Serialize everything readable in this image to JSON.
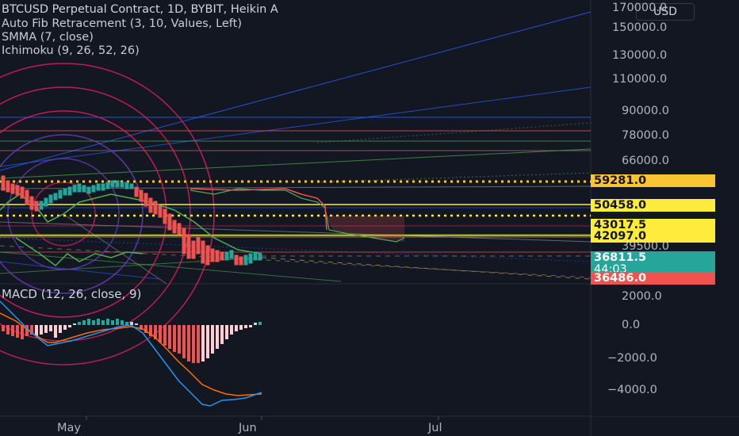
{
  "header": {
    "title": "BTCUSD Perpetual Contract, 1D, BYBIT, Heikin A",
    "indicators": [
      "Auto Fib Retracement (3, 10, Values, Left)",
      "SMMA (7, close)",
      "Ichimoku (9, 26, 52, 26)"
    ]
  },
  "currency_button": "USD",
  "price_axis": {
    "ticks": [
      "170000.0",
      "150000.0",
      "130000.0",
      "110000.0",
      "90000.0",
      "78000.0",
      "66000.0",
      "39500.0"
    ],
    "tags": [
      {
        "value": "59281.0",
        "bg": "#f9c533",
        "fg": "#131722"
      },
      {
        "value": "50458.0",
        "bg": "#ffeb3b",
        "fg": "#131722"
      },
      {
        "value": "43017.5",
        "bg": "#ffeb3b",
        "fg": "#131722"
      },
      {
        "value": "42097.0",
        "bg": "#ffeb3b",
        "fg": "#131722"
      },
      {
        "value": "36811.5",
        "bg": "#26a69a",
        "fg": "#ffffff"
      },
      {
        "value": "36486.0",
        "bg": "#ef5350",
        "fg": "#ffffff"
      }
    ],
    "countdown": "44:03"
  },
  "macd": {
    "legend": "MACD (12, 26, close, 9)",
    "ticks": [
      "2000.0",
      "0.0",
      "−2000.0",
      "−4000.0"
    ]
  },
  "time_axis": [
    "May",
    "Jun",
    "Jul"
  ],
  "colors": {
    "background": "#131722",
    "up": "#26a69a",
    "down": "#ef5350",
    "fib": "#f9c533"
  }
}
